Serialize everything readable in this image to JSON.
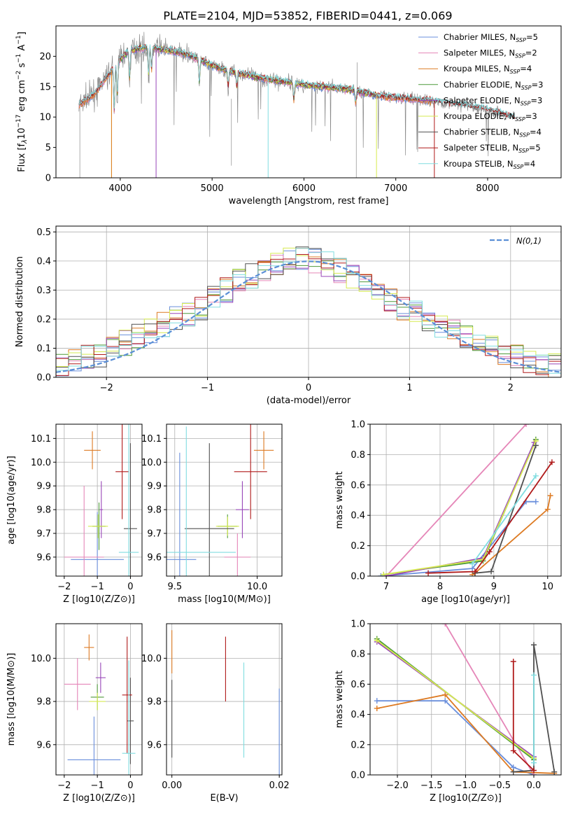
{
  "figure_title": "PLATE=2104, MJD=53852, FIBERID=0441, z=0.069",
  "colors": {
    "chab_miles": "#6a8fdc",
    "salp_miles": "#e586b8",
    "krou_miles": "#dd7a22",
    "chab_elodie": "#4f9a3a",
    "salp_elodie": "#9846b8",
    "krou_elodie": "#d6ea50",
    "chab_stelib": "#505050",
    "salp_stelib": "#b01a1a",
    "krou_stelib": "#80dde0",
    "data_gray": "#8a8a8a",
    "normal_curve": "#5b8fd6",
    "grid": "#b0b0b0"
  },
  "legend_spectrum": [
    {
      "key": "chab_miles",
      "text": "Chabrier MILES, N",
      "n": "5"
    },
    {
      "key": "salp_miles",
      "text": "Salpeter MILES, N",
      "n": "2"
    },
    {
      "key": "krou_miles",
      "text": "Kroupa MILES, N",
      "n": "4"
    },
    {
      "key": "chab_elodie",
      "text": "Chabrier ELODIE, N",
      "n": "3"
    },
    {
      "key": "salp_elodie",
      "text": "Salpeter ELODIE, N",
      "n": "3"
    },
    {
      "key": "krou_elodie",
      "text": "Kroupa ELODIE, N",
      "n": "3"
    },
    {
      "key": "chab_stelib",
      "text": "Chabrier STELIB, N",
      "n": "4"
    },
    {
      "key": "salp_stelib",
      "text": "Salpeter STELIB, N",
      "n": "5"
    },
    {
      "key": "krou_stelib",
      "text": "Kroupa STELIB, N",
      "n": "4"
    }
  ],
  "chart_data": [
    {
      "id": "spectrum",
      "type": "line",
      "xlabel": "wavelength [Angstrom, rest frame]",
      "ylabel": "Flux [f_λ10^-17 erg cm^-2 s^-1 A^-1]",
      "xlim": [
        3300,
        8800
      ],
      "ylim": [
        0,
        25
      ],
      "xticks": [
        4000,
        5000,
        6000,
        7000,
        8000
      ],
      "yticks": [
        0,
        5,
        10,
        15,
        20
      ],
      "continuum": [
        [
          3550,
          12.0
        ],
        [
          3700,
          13.5
        ],
        [
          3850,
          16.5
        ],
        [
          4000,
          19.5
        ],
        [
          4100,
          21.0
        ],
        [
          4300,
          21.5
        ],
        [
          4500,
          21.0
        ],
        [
          4700,
          20.5
        ],
        [
          5000,
          18.5
        ],
        [
          5200,
          17.5
        ],
        [
          5500,
          16.5
        ],
        [
          5800,
          15.8
        ],
        [
          6000,
          15.3
        ],
        [
          6200,
          15.0
        ],
        [
          6500,
          14.5
        ],
        [
          6800,
          13.5
        ],
        [
          7000,
          13.2
        ],
        [
          7300,
          12.8
        ],
        [
          7600,
          12.2
        ],
        [
          7900,
          11.5
        ],
        [
          8100,
          10.8
        ],
        [
          8300,
          9.8
        ]
      ],
      "dips": [
        [
          3934,
          -8.0
        ],
        [
          3968,
          -6.0
        ],
        [
          4102,
          -5.0
        ],
        [
          4308,
          -5.0
        ],
        [
          4340,
          -4.0
        ],
        [
          4861,
          -4.0
        ],
        [
          5175,
          -3.0
        ],
        [
          5270,
          -2.5
        ],
        [
          5890,
          -3.0
        ],
        [
          6563,
          -2.0
        ]
      ]
    },
    {
      "id": "residuals",
      "type": "histogram",
      "xlabel": "(data-model)/error",
      "ylabel": "Normed distribution",
      "xlim": [
        -2.5,
        2.5
      ],
      "ylim": [
        0,
        0.52
      ],
      "xticks": [
        -2,
        -1,
        0,
        1,
        2
      ],
      "yticks": [
        0.0,
        0.1,
        0.2,
        0.3,
        0.4,
        0.5
      ],
      "legend": "N(0,1)",
      "series_base": [
        0.05,
        0.06,
        0.07,
        0.08,
        0.1,
        0.12,
        0.14,
        0.16,
        0.18,
        0.2,
        0.22,
        0.24,
        0.27,
        0.3,
        0.33,
        0.35,
        0.37,
        0.39,
        0.4,
        0.41,
        0.4,
        0.39,
        0.37,
        0.35,
        0.33,
        0.3,
        0.27,
        0.24,
        0.22,
        0.2,
        0.18,
        0.16,
        0.14,
        0.12,
        0.1,
        0.08,
        0.07,
        0.06,
        0.05,
        0.04
      ]
    },
    {
      "id": "age_vs_Z",
      "type": "scatter",
      "xlabel": "Z [log10(Z/Z⊙)]",
      "ylabel": "age [log10(age/yr)]",
      "xlim": [
        -2.25,
        0.35
      ],
      "ylim": [
        9.52,
        10.16
      ],
      "xticks": [
        -2,
        -1,
        0
      ],
      "yticks": [
        9.6,
        9.7,
        9.8,
        9.9,
        10.0,
        10.1
      ],
      "points": [
        {
          "key": "chab_miles",
          "x": -1.0,
          "y": 9.59,
          "xerr": 0.8,
          "yerr": 0.2
        },
        {
          "key": "salp_miles",
          "x": -1.4,
          "y": 9.6,
          "xerr": 0.6,
          "yerr": 0.3
        },
        {
          "key": "krou_miles",
          "x": -1.15,
          "y": 10.05,
          "xerr": 0.25,
          "yerr": 0.08
        },
        {
          "key": "chab_elodie",
          "x": -0.95,
          "y": 9.73,
          "xerr": 0.2,
          "yerr": 0.1
        },
        {
          "key": "salp_elodie",
          "x": -0.88,
          "y": 9.8,
          "xerr": 0.05,
          "yerr": 0.12
        },
        {
          "key": "krou_elodie",
          "x": -0.98,
          "y": 9.73,
          "xerr": 0.3,
          "yerr": 0.05
        },
        {
          "key": "chab_stelib",
          "x": 0.0,
          "y": 9.72,
          "xerr": 0.2,
          "yerr": 0.36
        },
        {
          "key": "salp_stelib",
          "x": -0.25,
          "y": 9.96,
          "xerr": 0.2,
          "yerr": 0.2
        },
        {
          "key": "krou_stelib",
          "x": -0.05,
          "y": 9.62,
          "xerr": 0.3,
          "yerr": 0.55
        }
      ]
    },
    {
      "id": "age_vs_mass",
      "type": "scatter",
      "xlabel": "mass [log10(M/M⊙)]",
      "ylabel": "",
      "xlim": [
        9.45,
        10.15
      ],
      "ylim": [
        9.52,
        10.16
      ],
      "xticks": [
        9.5,
        10.0
      ],
      "yticks": [
        9.6,
        9.7,
        9.8,
        9.9,
        10.0,
        10.1
      ],
      "points": [
        {
          "key": "chab_miles",
          "x": 9.53,
          "y": 9.59,
          "xerr": 0.1,
          "yerr": 0.45
        },
        {
          "key": "salp_miles",
          "x": 9.88,
          "y": 9.6,
          "xerr": 0.08,
          "yerr": 0.1
        },
        {
          "key": "krou_miles",
          "x": 10.04,
          "y": 10.05,
          "xerr": 0.06,
          "yerr": 0.08
        },
        {
          "key": "chab_elodie",
          "x": 9.82,
          "y": 9.73,
          "xerr": 0.06,
          "yerr": 0.05
        },
        {
          "key": "salp_elodie",
          "x": 9.91,
          "y": 9.8,
          "xerr": 0.04,
          "yerr": 0.12
        },
        {
          "key": "krou_elodie",
          "x": 9.82,
          "y": 9.73,
          "xerr": 0.07,
          "yerr": 0.04
        },
        {
          "key": "chab_stelib",
          "x": 9.71,
          "y": 9.72,
          "xerr": 0.15,
          "yerr": 0.36
        },
        {
          "key": "salp_stelib",
          "x": 9.96,
          "y": 9.96,
          "xerr": 0.1,
          "yerr": 0.2
        },
        {
          "key": "krou_stelib",
          "x": 9.57,
          "y": 9.62,
          "xerr": 0.3,
          "yerr": 0.53
        }
      ]
    },
    {
      "id": "weight_vs_age",
      "type": "line",
      "xlabel": "age  [log10(age/yr)]",
      "ylabel": "mass weight",
      "xlim": [
        6.7,
        10.25
      ],
      "ylim": [
        0,
        1
      ],
      "xticks": [
        7,
        8,
        9,
        10
      ],
      "yticks": [
        0.0,
        0.2,
        0.4,
        0.6,
        0.8,
        1.0
      ],
      "series": [
        {
          "key": "chab_miles",
          "x": [
            6.9,
            8.6,
            9.6,
            9.78
          ],
          "y": [
            0.0,
            0.05,
            0.49,
            0.49
          ]
        },
        {
          "key": "salp_miles",
          "x": [
            7.0,
            9.6
          ],
          "y": [
            0.0,
            1.0
          ]
        },
        {
          "key": "krou_miles",
          "x": [
            8.6,
            8.65,
            10.0,
            10.05
          ],
          "y": [
            0.01,
            0.02,
            0.44,
            0.53
          ]
        },
        {
          "key": "chab_elodie",
          "x": [
            6.95,
            8.8,
            9.78
          ],
          "y": [
            0.01,
            0.1,
            0.9
          ]
        },
        {
          "key": "salp_elodie",
          "x": [
            7.0,
            8.8,
            9.75
          ],
          "y": [
            0.0,
            0.12,
            0.88
          ]
        },
        {
          "key": "krou_elodie",
          "x": [
            6.95,
            8.8,
            9.78
          ],
          "y": [
            0.01,
            0.11,
            0.89
          ]
        },
        {
          "key": "chab_stelib",
          "x": [
            8.65,
            8.95,
            9.78
          ],
          "y": [
            0.02,
            0.03,
            0.86
          ]
        },
        {
          "key": "salp_stelib",
          "x": [
            7.78,
            8.65,
            8.92,
            10.08
          ],
          "y": [
            0.02,
            0.03,
            0.16,
            0.75
          ]
        },
        {
          "key": "krou_stelib",
          "x": [
            8.6,
            9.78
          ],
          "y": [
            0.08,
            0.66
          ]
        }
      ]
    },
    {
      "id": "mass_vs_Z",
      "type": "scatter",
      "xlabel": "Z [log10(Z/Z⊙)]",
      "ylabel": "mass [log10(M/M⊙)]",
      "xlim": [
        -2.25,
        0.35
      ],
      "ylim": [
        9.46,
        10.16
      ],
      "xticks": [
        -2,
        -1,
        0
      ],
      "yticks": [
        9.6,
        9.8,
        10.0
      ],
      "points": [
        {
          "key": "chab_miles",
          "x": -1.1,
          "y": 9.53,
          "xerr": 0.8,
          "yerr": 0.2
        },
        {
          "key": "salp_miles",
          "x": -1.6,
          "y": 9.88,
          "xerr": 0.4,
          "yerr": 0.12
        },
        {
          "key": "krou_miles",
          "x": -1.25,
          "y": 10.05,
          "xerr": 0.15,
          "yerr": 0.06
        },
        {
          "key": "chab_elodie",
          "x": -1.0,
          "y": 9.82,
          "xerr": 0.2,
          "yerr": 0.06
        },
        {
          "key": "salp_elodie",
          "x": -0.9,
          "y": 9.91,
          "xerr": 0.15,
          "yerr": 0.07
        },
        {
          "key": "krou_elodie",
          "x": -1.0,
          "y": 9.8,
          "xerr": 0.25,
          "yerr": 0.04
        },
        {
          "key": "chab_stelib",
          "x": 0.0,
          "y": 9.71,
          "xerr": 0.1,
          "yerr": 0.2
        },
        {
          "key": "salp_stelib",
          "x": -0.1,
          "y": 9.83,
          "xerr": 0.15,
          "yerr": 0.27
        },
        {
          "key": "krou_stelib",
          "x": -0.05,
          "y": 9.56,
          "xerr": 0.2,
          "yerr": 0.43
        }
      ]
    },
    {
      "id": "mass_vs_EBV",
      "type": "scatter",
      "xlabel": "E(B-V)",
      "ylabel": "",
      "xlim": [
        -0.001,
        0.0205
      ],
      "ylim": [
        9.46,
        10.16
      ],
      "xticks": [
        0.0,
        0.02
      ],
      "yticks": [
        9.6,
        9.8,
        10.0
      ],
      "points": [
        {
          "key": "chab_miles",
          "x": 0.02,
          "y": 9.53,
          "xerr": 0,
          "yerr": 0.33
        },
        {
          "key": "krou_miles",
          "x": 0.0,
          "y": 10.03,
          "xerr": 0,
          "yerr": 0.1
        },
        {
          "key": "chab_stelib",
          "x": 0.0,
          "y": 9.72,
          "xerr": 0,
          "yerr": 0.18
        },
        {
          "key": "salp_stelib",
          "x": 0.01,
          "y": 9.95,
          "xerr": 0,
          "yerr": 0.15
        },
        {
          "key": "krou_stelib",
          "x": 0.0134,
          "y": 9.76,
          "xerr": 0,
          "yerr": 0.22
        }
      ]
    },
    {
      "id": "weight_vs_Z",
      "type": "line",
      "xlabel": "Z [log10(Z/Z⊙)]",
      "ylabel": "mass weight",
      "xlim": [
        -2.4,
        0.4
      ],
      "ylim": [
        0,
        1
      ],
      "xticks": [
        -2.0,
        -1.5,
        -1.0,
        -0.5,
        0.0
      ],
      "yticks": [
        0.0,
        0.2,
        0.4,
        0.6,
        0.8,
        1.0
      ],
      "series": [
        {
          "key": "chab_miles",
          "x": [
            -2.3,
            -1.3,
            -0.3,
            0.0
          ],
          "y": [
            0.49,
            0.49,
            0.05,
            0.0
          ]
        },
        {
          "key": "salp_miles",
          "x": [
            -1.3,
            0.0
          ],
          "y": [
            1.0,
            0.0
          ]
        },
        {
          "key": "krou_miles",
          "x": [
            -2.3,
            -1.3,
            -0.3,
            0.3
          ],
          "y": [
            0.44,
            0.53,
            0.02,
            0.01
          ]
        },
        {
          "key": "chab_elodie",
          "x": [
            -2.3,
            0.0
          ],
          "y": [
            0.9,
            0.1
          ]
        },
        {
          "key": "salp_elodie",
          "x": [
            -2.3,
            0.0
          ],
          "y": [
            0.88,
            0.12
          ]
        },
        {
          "key": "krou_elodie",
          "x": [
            -2.3,
            0.0
          ],
          "y": [
            0.89,
            0.11
          ]
        },
        {
          "key": "chab_stelib",
          "x": [
            -0.3,
            0.0,
            0.0,
            0.3
          ],
          "y": [
            0.02,
            0.03,
            0.86,
            0.02
          ]
        },
        {
          "key": "salp_stelib",
          "x": [
            -0.3,
            -0.3,
            0.0
          ],
          "y": [
            0.75,
            0.16,
            0.03
          ]
        },
        {
          "key": "krou_stelib",
          "x": [
            0.0,
            0.0
          ],
          "y": [
            0.66,
            0.08
          ]
        }
      ]
    }
  ]
}
